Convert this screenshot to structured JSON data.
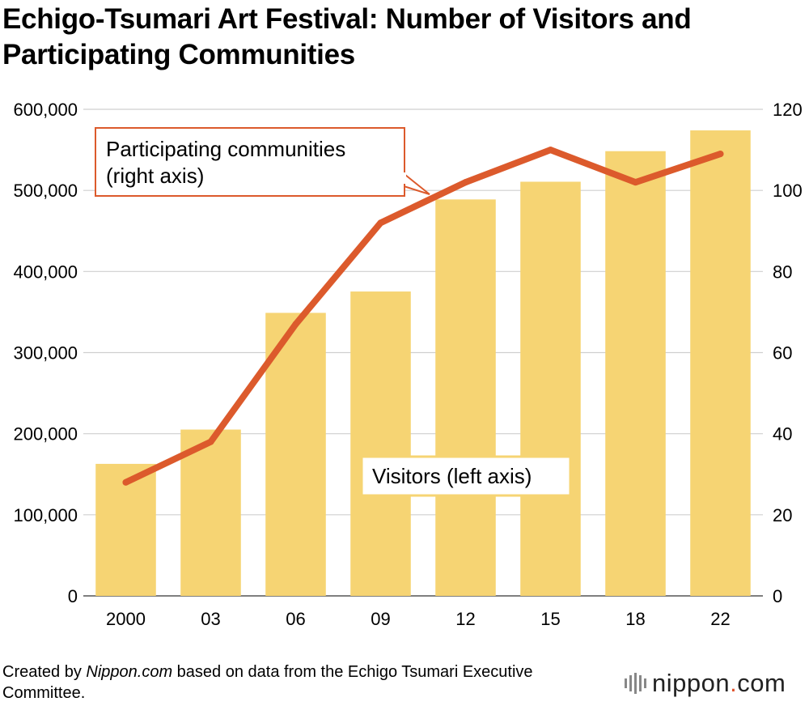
{
  "chart_data": {
    "type": "bar+line",
    "title": "Echigo-Tsumari Art Festival: Number of Visitors and Participating Communities",
    "categories": [
      "2000",
      "03",
      "06",
      "09",
      "12",
      "15",
      "18",
      "22"
    ],
    "series": [
      {
        "name": "Visitors (left axis)",
        "type": "bar",
        "axis": "left",
        "values": [
          162800,
          205100,
          348997,
          375311,
          488848,
          510690,
          548380,
          573997
        ]
      },
      {
        "name": "Participating communities (right axis)",
        "type": "line",
        "axis": "right",
        "values": [
          28,
          38,
          67,
          92,
          102,
          110,
          102,
          109
        ]
      }
    ],
    "left_axis": {
      "min": 0,
      "max": 600000,
      "ticks": [
        "0",
        "100,000",
        "200,000",
        "300,000",
        "400,000",
        "500,000",
        "600,000"
      ]
    },
    "right_axis": {
      "min": 0,
      "max": 120,
      "ticks": [
        "0",
        "20",
        "40",
        "60",
        "80",
        "100",
        "120"
      ]
    },
    "grid": "horizontal",
    "colors": {
      "bar": "#f6d473",
      "line": "#dc5a2c",
      "callout_border": "#dc5a2c",
      "bar_label_border": "#f6d473"
    }
  },
  "footer": {
    "prefix": "Created by ",
    "site": "Nippon.com",
    "suffix": " based on data from the Echigo Tsumari Executive Committee."
  },
  "logo": {
    "name": "nippon",
    "dot": ".",
    "tld": "com"
  }
}
